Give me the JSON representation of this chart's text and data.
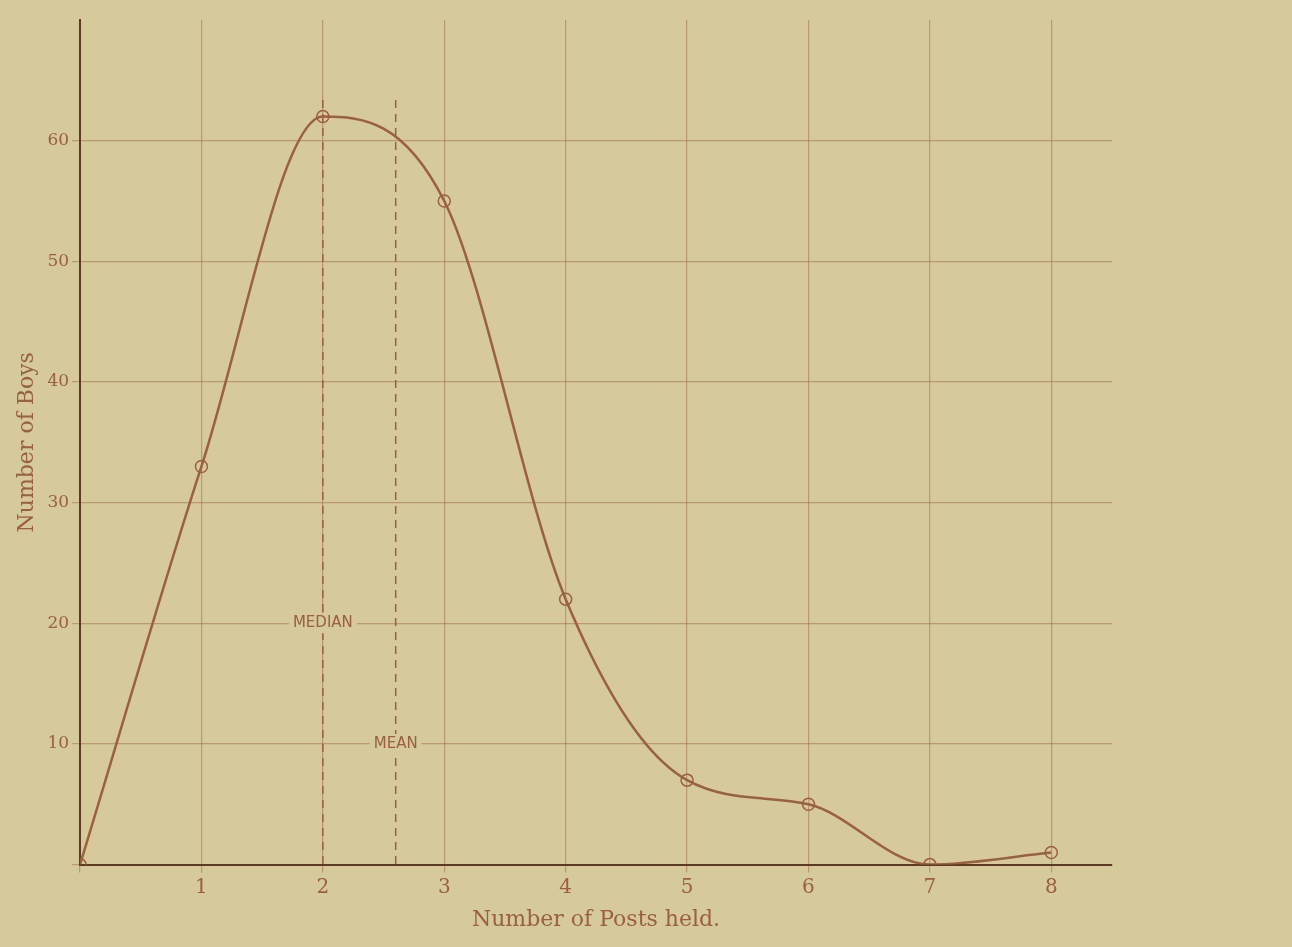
{
  "chart_data": {
    "type": "line",
    "xlabel": "Number of Posts held.",
    "ylabel": "Number of Boys",
    "x": [
      0,
      1,
      2,
      3,
      4,
      5,
      6,
      7,
      8
    ],
    "series": [
      {
        "color": "#9a6040",
        "values": [
          0,
          33,
          62,
          55,
          22,
          7,
          5,
          0,
          1
        ]
      }
    ],
    "xlim": [
      0,
      8.5
    ],
    "xticks": [
      {
        "value": 0,
        "label": null
      },
      1,
      2,
      3,
      4,
      5,
      6,
      7,
      8
    ],
    "ylim": [
      0,
      70
    ],
    "yticks": [
      {
        "value": 0,
        "label": null
      },
      10,
      20,
      30,
      40,
      50,
      60
    ],
    "grid": true,
    "marker": "circle",
    "line_style": "solid",
    "legend": false,
    "ref_lines": [
      {
        "axis": "x",
        "value": 2,
        "label": "MEDIAN",
        "line_style": "dashed",
        "color": "#9a6040"
      },
      {
        "axis": "x",
        "value": 2.6,
        "label": "MEAN",
        "line_style": "dashed",
        "color": "#9a6040"
      }
    ]
  }
}
